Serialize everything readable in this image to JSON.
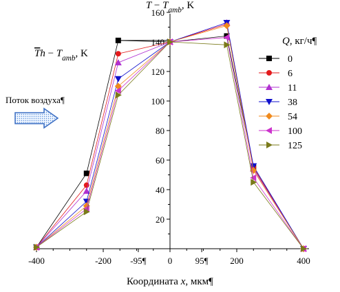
{
  "chart_data": {
    "type": "line",
    "title": "",
    "ylabel": "T − T_amb, K",
    "y_axis_label_parts": [
      "T",
      " − ",
      "T",
      "amb",
      ", K"
    ],
    "xlabel": "Координата x, мкм¶",
    "xlabel_parts": [
      "Координата ",
      "x",
      ", мкм¶"
    ],
    "xlim": [
      -400,
      400
    ],
    "ylim": [
      0,
      160
    ],
    "x_ticks": [
      -400,
      -200,
      -95,
      0,
      95,
      200,
      400
    ],
    "x_tick_labels": [
      "-400",
      "-200",
      "-95¶",
      "0",
      "95¶",
      "200",
      "400"
    ],
    "y_ticks": [
      20,
      40,
      60,
      80,
      100,
      120,
      140,
      160
    ],
    "grid": false,
    "legend_title_parts": [
      "Q",
      ", кг/ч¶"
    ],
    "legend_position": "right",
    "annotation_mean": {
      "parts": [
        "T",
        "h",
        " − ",
        "T",
        "amb",
        ", K"
      ],
      "value_y": 141,
      "from_x": -400,
      "to_x": 0
    },
    "airflow_label": "Поток воздуха¶",
    "series": [
      {
        "name": "0",
        "color": "#000000",
        "marker": "square",
        "x": [
          -400,
          -250,
          -155,
          0,
          170,
          250,
          400
        ],
        "y": [
          1,
          51,
          141,
          140,
          144,
          55,
          0
        ]
      },
      {
        "name": "6",
        "color": "#e31a1c",
        "marker": "circle",
        "x": [
          -400,
          -250,
          -155,
          0,
          170,
          250,
          400
        ],
        "y": [
          1,
          43,
          132,
          140,
          152,
          55,
          0
        ]
      },
      {
        "name": "11",
        "color": "#b030d0",
        "marker": "triangle-up",
        "x": [
          -400,
          -250,
          -155,
          0,
          170,
          250,
          400
        ],
        "y": [
          1,
          39,
          126,
          140,
          153,
          54,
          0
        ]
      },
      {
        "name": "38",
        "color": "#1010cc",
        "marker": "triangle-down",
        "x": [
          -400,
          -250,
          -155,
          0,
          170,
          250,
          400
        ],
        "y": [
          1,
          32,
          115,
          140,
          153,
          56,
          0
        ]
      },
      {
        "name": "54",
        "color": "#f08a1c",
        "marker": "diamond",
        "x": [
          -400,
          -250,
          -155,
          0,
          170,
          250,
          400
        ],
        "y": [
          1,
          29,
          110,
          140,
          151,
          53,
          0
        ]
      },
      {
        "name": "100",
        "color": "#cc33cc",
        "marker": "triangle-left",
        "x": [
          -400,
          -250,
          -155,
          0,
          170,
          250,
          400
        ],
        "y": [
          1,
          27,
          107,
          140,
          143,
          48,
          0
        ]
      },
      {
        "name": "125",
        "color": "#7a7a1a",
        "marker": "triangle-right",
        "x": [
          -400,
          -250,
          -155,
          0,
          170,
          250,
          400
        ],
        "y": [
          1,
          25,
          104,
          140,
          138,
          45,
          0
        ]
      }
    ]
  }
}
